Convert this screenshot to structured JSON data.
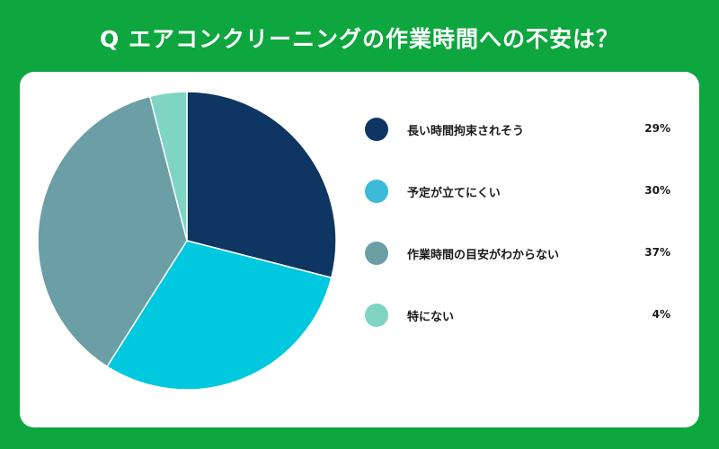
{
  "chart_data": {
    "type": "pie",
    "title": "Q エアコンクリーニングの作業時間への不安は？",
    "unit": "%",
    "slices": [
      {
        "label": "長い時間拘束されそう",
        "value": 29,
        "display": "29%",
        "color": "#0f3562"
      },
      {
        "label": "予定が立てにくい",
        "value": 30,
        "display": "30%",
        "color": "#00c8de"
      },
      {
        "label": "作業時間の目安がわからない",
        "value": 37,
        "display": "37%",
        "color": "#6b9fa5"
      },
      {
        "label": "特にない",
        "value": 4,
        "display": "4%",
        "color": "#7fd4c4"
      }
    ],
    "legend": {
      "position": "right",
      "dot_colors": [
        "#0f3562",
        "#3cbad8",
        "#6b9fa5",
        "#7fd4c4"
      ]
    }
  },
  "colors": {
    "background": "#0ea63e",
    "card": "#ffffff",
    "title_text": "#ffffff"
  }
}
